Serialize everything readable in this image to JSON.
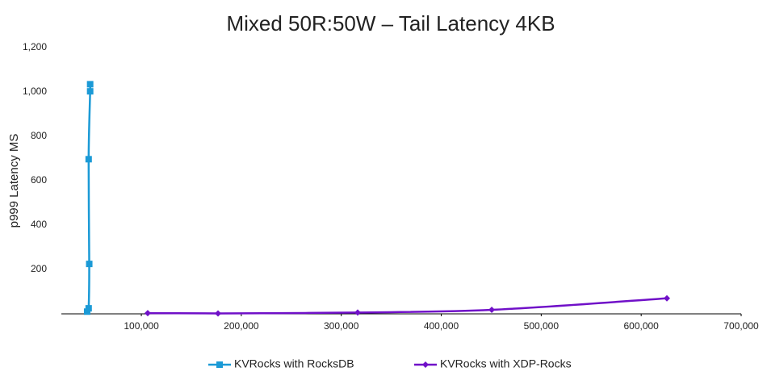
{
  "chart_data": {
    "type": "line",
    "title": "Mixed 50R:50W – Tail Latency 4KB",
    "y_label": "p999 Latency  MS",
    "series": [
      {
        "name": "KVRocks with RocksDB",
        "color": "#1b9ad6",
        "marker": "square",
        "x": [
          45800,
          47300,
          47900,
          47300,
          48800,
          48800
        ],
        "values": [
          10,
          25,
          225,
          697,
          1003,
          1035
        ]
      },
      {
        "name": "KVRocks with XDP-Rocks",
        "color": "#7010c8",
        "marker": "diamond",
        "x": [
          106400,
          176700,
          316400,
          450500,
          625700
        ],
        "values": [
          3,
          2,
          6,
          18,
          70
        ]
      }
    ],
    "xlim": [
      20000,
      700000
    ],
    "xticks": [
      {
        "value": 100000,
        "label": "100,000"
      },
      {
        "value": 200000,
        "label": "200,000"
      },
      {
        "value": 300000,
        "label": "300,000"
      },
      {
        "value": 400000,
        "label": "400,000"
      },
      {
        "value": 500000,
        "label": "500,000"
      },
      {
        "value": 600000,
        "label": "600,000"
      },
      {
        "value": 700000,
        "label": "700,000"
      }
    ],
    "ylim": [
      0,
      1200
    ],
    "yticks": [
      200,
      400,
      600,
      800,
      {
        "value": 1000,
        "label": "1,000"
      },
      {
        "value": 1200,
        "label": "1,200"
      }
    ],
    "legend": "bottom"
  }
}
